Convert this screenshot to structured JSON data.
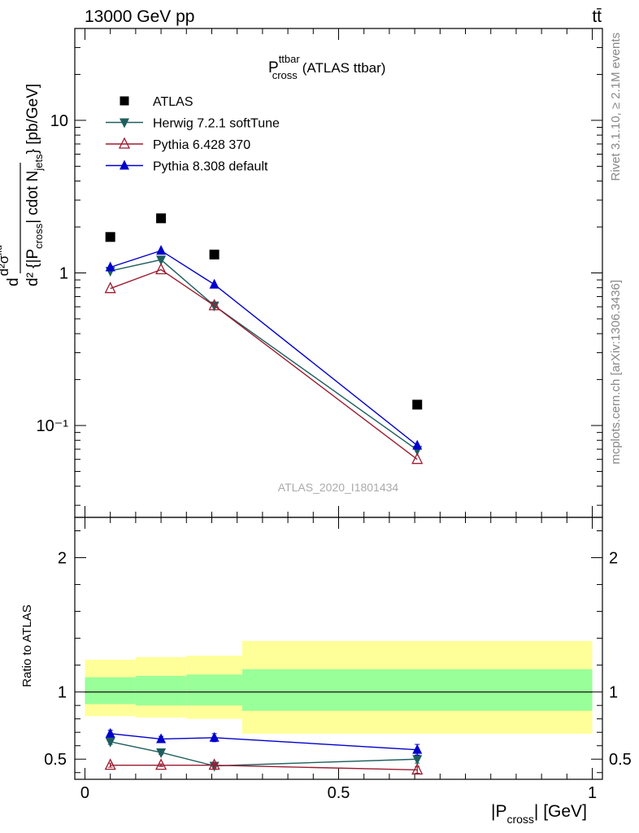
{
  "header": {
    "process": "13000 GeV pp",
    "final_state": "tt̄"
  },
  "side_labels": {
    "rivet": "Rivet 3.1.10, ≥ 2.1M events",
    "mcplots": "mcplots.cern.ch [arXiv:1306.3436]"
  },
  "main_title": {
    "symbol": "P",
    "sup": "ttbar",
    "sub": "cross",
    "rest": "(ATLAS ttbar)"
  },
  "analysis_id": "ATLAS_2020_I1801434",
  "y_axis_label": {
    "num": "d²σ",
    "num_sup": "fid",
    "den_a": "d² {|P",
    "den_sub": "cross",
    "den_b": "| cdot N",
    "den_sub2": "jets",
    "den_c": "} [pb/GeV]"
  },
  "ratio_label": "Ratio to ATLAS",
  "x_axis_label": {
    "a": "|P",
    "sub": "cross",
    "b": "| [GeV]"
  },
  "ticks": {
    "main_y": [
      "10⁻¹",
      "1",
      "10"
    ],
    "ratio_y": [
      "0.5",
      "1",
      "2"
    ],
    "x": [
      "0",
      "0.5",
      "1"
    ]
  },
  "legend": [
    {
      "label": "ATLAS",
      "color": "#000000",
      "marker": "square"
    },
    {
      "label": "Herwig 7.2.1 softTune",
      "color": "#1f5e5e",
      "marker": "triangle-down"
    },
    {
      "label": "Pythia 6.428 370",
      "color": "#9b1c31",
      "marker": "triangle-open"
    },
    {
      "label": "Pythia 8.308 default",
      "color": "#0000cc",
      "marker": "triangle-up"
    }
  ],
  "chart_data": {
    "type": "scatter",
    "x_scale": "linear",
    "y_scale": "log",
    "xlim": [
      -0.02,
      1.02
    ],
    "ylim": [
      0.025,
      40
    ],
    "ratio_ylim": [
      0.35,
      2.3
    ],
    "bins": [
      [
        0.0,
        0.1
      ],
      [
        0.1,
        0.2
      ],
      [
        0.2,
        0.31
      ],
      [
        0.31,
        1.0
      ]
    ],
    "x": [
      0.05,
      0.15,
      0.255,
      0.655
    ],
    "band_bins": [
      [
        0.0,
        0.1
      ],
      [
        0.1,
        0.2
      ],
      [
        0.2,
        0.31
      ],
      [
        0.31,
        1.0
      ]
    ],
    "band_inner": [
      [
        0.91,
        1.11
      ],
      [
        0.9,
        1.12
      ],
      [
        0.9,
        1.13
      ],
      [
        0.86,
        1.17
      ]
    ],
    "band_outer": [
      [
        0.82,
        1.24
      ],
      [
        0.81,
        1.26
      ],
      [
        0.8,
        1.27
      ],
      [
        0.69,
        1.38
      ]
    ],
    "series": [
      {
        "name": "ATLAS",
        "values": [
          1.72,
          2.28,
          1.32,
          0.137
        ],
        "ratio": [
          1,
          1,
          1,
          1
        ],
        "ratio_err": [
          0,
          0,
          0,
          0
        ],
        "line": false
      },
      {
        "name": "Herwig 7.2.1 softTune",
        "values": [
          1.03,
          1.22,
          0.61,
          0.069
        ],
        "ratio": [
          0.63,
          0.55,
          0.45,
          0.5
        ],
        "ratio_err": [
          0.02,
          0.015,
          0.025,
          0.03
        ],
        "line": true
      },
      {
        "name": "Pythia 6.428 370",
        "values": [
          0.79,
          1.05,
          0.61,
          0.06
        ],
        "ratio": [
          0.455,
          0.455,
          0.455,
          0.42
        ],
        "ratio_err": [
          0.015,
          0.01,
          0.02,
          0.025
        ],
        "line": true
      },
      {
        "name": "Pythia 8.308 default",
        "values": [
          1.09,
          1.4,
          0.84,
          0.074
        ],
        "ratio": [
          0.69,
          0.65,
          0.66,
          0.57
        ],
        "ratio_err": [
          0.025,
          0.02,
          0.03,
          0.04
        ],
        "line": true
      }
    ]
  }
}
